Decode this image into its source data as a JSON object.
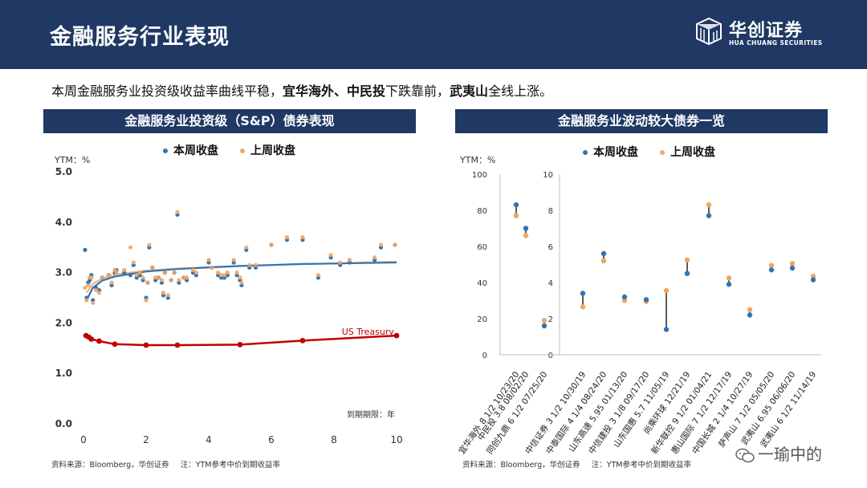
{
  "header": {
    "title": "金融服务行业表现",
    "logo_cn": "华创证券",
    "logo_en": "HUA CHUANG SECURITIES"
  },
  "summary": {
    "part1": "本周金融服务业投资级收益率曲线平稳，",
    "bold1": "宜华海外、中民投",
    "part2": "下跌靠前，",
    "bold2": "武夷山",
    "part3": "全线上涨。"
  },
  "left_panel": {
    "title": "金融服务业投资级（S&P）债券表现",
    "source": "资料来源：Bloomberg，华创证券",
    "note": "注：YTM参考中价到期收益率"
  },
  "right_panel": {
    "title": "金融服务业波动较大债券一览",
    "source": "资料来源：Bloomberg，华创证券",
    "note": "注：YTM参考中价到期收益率"
  },
  "watermark": "一瑜中的",
  "colors": {
    "navy": "#1f3864",
    "this_week": "#2e75b6",
    "last_week": "#f4a460",
    "treasury": "#c00000",
    "fit_this": "#2e75b6",
    "fit_last": "#f4b183"
  },
  "chart_data": [
    {
      "type": "scatter",
      "ylabel": "YTM：%",
      "xlabel": "到期期限：年",
      "xlim": [
        0,
        10
      ],
      "ylim": [
        0,
        5
      ],
      "x_ticks": [
        "0",
        "2",
        "4",
        "6",
        "8",
        "10"
      ],
      "y_ticks": [
        "0.0",
        "1.0",
        "2.0",
        "3.0",
        "4.0",
        "5.0"
      ],
      "grid": false,
      "legend": [
        "本周收盘",
        "上周收盘"
      ],
      "legend_position": "top",
      "series": [
        {
          "name": "本周收盘",
          "points": [
            [
              0.05,
              3.45
            ],
            [
              0.1,
              2.5
            ],
            [
              0.15,
              2.8
            ],
            [
              0.2,
              2.85
            ],
            [
              0.25,
              2.95
            ],
            [
              0.3,
              2.45
            ],
            [
              0.4,
              2.7
            ],
            [
              0.5,
              2.65
            ],
            [
              0.6,
              2.9
            ],
            [
              0.8,
              2.95
            ],
            [
              0.9,
              2.75
            ],
            [
              1.0,
              3.0
            ],
            [
              1.05,
              3.05
            ],
            [
              1.3,
              3.0
            ],
            [
              1.5,
              2.95
            ],
            [
              1.6,
              3.15
            ],
            [
              1.7,
              2.9
            ],
            [
              1.8,
              2.95
            ],
            [
              1.9,
              2.85
            ],
            [
              2.0,
              2.5
            ],
            [
              2.05,
              2.8
            ],
            [
              2.1,
              3.5
            ],
            [
              2.2,
              3.1
            ],
            [
              2.3,
              2.85
            ],
            [
              2.4,
              2.9
            ],
            [
              2.5,
              2.8
            ],
            [
              2.55,
              2.55
            ],
            [
              2.6,
              3.0
            ],
            [
              2.7,
              2.5
            ],
            [
              2.8,
              2.85
            ],
            [
              2.9,
              3.0
            ],
            [
              3.0,
              4.15
            ],
            [
              3.05,
              2.8
            ],
            [
              3.2,
              2.9
            ],
            [
              3.3,
              2.85
            ],
            [
              3.5,
              3.0
            ],
            [
              3.6,
              2.95
            ],
            [
              4.0,
              3.2
            ],
            [
              4.1,
              3.1
            ],
            [
              4.3,
              2.95
            ],
            [
              4.4,
              2.9
            ],
            [
              4.5,
              2.9
            ],
            [
              4.6,
              2.95
            ],
            [
              4.8,
              3.2
            ],
            [
              4.9,
              2.95
            ],
            [
              5.0,
              2.85
            ],
            [
              5.05,
              2.75
            ],
            [
              5.2,
              3.45
            ],
            [
              5.3,
              3.1
            ],
            [
              5.5,
              3.1
            ],
            [
              6.0,
              3.55
            ],
            [
              6.5,
              3.65
            ],
            [
              7.0,
              3.65
            ],
            [
              7.5,
              2.9
            ],
            [
              7.9,
              3.3
            ],
            [
              8.2,
              3.15
            ],
            [
              8.5,
              3.2
            ],
            [
              9.3,
              3.25
            ],
            [
              9.5,
              3.5
            ],
            [
              9.95,
              3.55
            ]
          ]
        },
        {
          "name": "上周收盘",
          "points": [
            [
              0.05,
              2.7
            ],
            [
              0.1,
              2.45
            ],
            [
              0.15,
              2.75
            ],
            [
              0.2,
              2.9
            ],
            [
              0.25,
              2.9
            ],
            [
              0.3,
              2.4
            ],
            [
              0.4,
              2.65
            ],
            [
              0.5,
              2.6
            ],
            [
              0.6,
              2.9
            ],
            [
              0.8,
              2.95
            ],
            [
              0.9,
              2.8
            ],
            [
              1.0,
              3.05
            ],
            [
              1.05,
              3.0
            ],
            [
              1.3,
              3.05
            ],
            [
              1.5,
              3.5
            ],
            [
              1.6,
              3.2
            ],
            [
              1.7,
              2.95
            ],
            [
              1.8,
              3.0
            ],
            [
              1.9,
              2.9
            ],
            [
              2.0,
              2.45
            ],
            [
              2.05,
              2.8
            ],
            [
              2.1,
              3.55
            ],
            [
              2.2,
              3.1
            ],
            [
              2.3,
              2.9
            ],
            [
              2.4,
              2.9
            ],
            [
              2.5,
              2.85
            ],
            [
              2.55,
              2.6
            ],
            [
              2.6,
              3.0
            ],
            [
              2.7,
              2.55
            ],
            [
              2.8,
              2.85
            ],
            [
              2.9,
              3.0
            ],
            [
              3.0,
              4.2
            ],
            [
              3.05,
              2.85
            ],
            [
              3.2,
              2.9
            ],
            [
              3.3,
              2.9
            ],
            [
              3.5,
              3.05
            ],
            [
              3.6,
              3.0
            ],
            [
              4.0,
              3.25
            ],
            [
              4.1,
              3.1
            ],
            [
              4.3,
              3.0
            ],
            [
              4.4,
              2.95
            ],
            [
              4.5,
              2.95
            ],
            [
              4.6,
              3.0
            ],
            [
              4.8,
              3.25
            ],
            [
              4.9,
              3.0
            ],
            [
              5.0,
              2.9
            ],
            [
              5.05,
              2.8
            ],
            [
              5.2,
              3.5
            ],
            [
              5.3,
              3.15
            ],
            [
              5.5,
              3.15
            ],
            [
              6.0,
              3.55
            ],
            [
              6.5,
              3.7
            ],
            [
              7.0,
              3.7
            ],
            [
              7.5,
              2.95
            ],
            [
              7.9,
              3.35
            ],
            [
              8.2,
              3.2
            ],
            [
              8.5,
              3.25
            ],
            [
              9.3,
              3.3
            ],
            [
              9.5,
              3.55
            ],
            [
              9.95,
              3.55
            ]
          ]
        }
      ],
      "trend_lines": [
        {
          "series": "本周收盘",
          "points": [
            [
              0.1,
              2.45
            ],
            [
              0.3,
              2.7
            ],
            [
              0.6,
              2.84
            ],
            [
              1.0,
              2.92
            ],
            [
              2.0,
              3.02
            ],
            [
              3.0,
              3.07
            ],
            [
              4.0,
              3.1
            ],
            [
              5.0,
              3.13
            ],
            [
              6.0,
              3.15
            ],
            [
              7.0,
              3.17
            ],
            [
              8.0,
              3.18
            ],
            [
              9.0,
              3.19
            ],
            [
              10.0,
              3.2
            ]
          ]
        },
        {
          "series": "上周收盘",
          "points": [
            [
              0.1,
              2.6
            ],
            [
              0.3,
              2.78
            ],
            [
              0.6,
              2.88
            ],
            [
              1.0,
              2.96
            ],
            [
              2.0,
              3.04
            ],
            [
              3.0,
              3.08
            ],
            [
              4.0,
              3.11
            ],
            [
              5.0,
              3.13
            ],
            [
              6.0,
              3.15
            ],
            [
              7.0,
              3.17
            ],
            [
              8.0,
              3.18
            ],
            [
              9.0,
              3.2
            ],
            [
              10.0,
              3.21
            ]
          ]
        }
      ],
      "treasury": {
        "name": "US Treasury",
        "points": [
          [
            0.08,
            1.75
          ],
          [
            0.17,
            1.72
          ],
          [
            0.25,
            1.68
          ],
          [
            0.5,
            1.64
          ],
          [
            1.0,
            1.58
          ],
          [
            2.0,
            1.56
          ],
          [
            3.0,
            1.56
          ],
          [
            5.0,
            1.57
          ],
          [
            7.0,
            1.65
          ],
          [
            10.0,
            1.75
          ]
        ]
      }
    },
    {
      "type": "scatter",
      "ylabel": "YTM：%",
      "legend": [
        "本周收盘",
        "上周收盘"
      ],
      "legend_position": "top",
      "grid": false,
      "axis_left": {
        "ylim": [
          0,
          100
        ],
        "ticks": [
          "0",
          "20",
          "40",
          "60",
          "80",
          "100"
        ]
      },
      "axis_right": {
        "ylim": [
          0,
          10
        ],
        "ticks": [
          "0",
          "2",
          "4",
          "6",
          "8",
          "10"
        ]
      },
      "categories": [
        "宜华海外 8 1/2 10/23/20",
        "中民投 3.8 08/02/20",
        "同创九鼎 6 1/2 07/25/20",
        "中信证券 3 1/2 10/30/19",
        "中泰国际 4 1/4 08/24/20",
        "山东高速 5.95 01/13/20",
        "中信建投 3 1/8 09/17/20",
        "山东国惠 5.7 11/05/19",
        "尚乘环球 12/21/19",
        "新华联控 9 1/2 01/04/21",
        "惠山国际 7 1/2 12/17/19",
        "中国长城 2 1/4 10/27/19",
        "萨声山 7 1/2 05/05/20",
        "武夷山 6.95 06/06/20",
        "武夷山 6 1/2 11/14/19"
      ],
      "series": [
        {
          "name": "本周收盘",
          "values": [
            83,
            70,
            16,
            3.4,
            5.6,
            3.2,
            3.05,
            1.4,
            4.5,
            7.7,
            3.9,
            2.2,
            4.7,
            4.8,
            4.15
          ]
        },
        {
          "name": "上周收盘",
          "values": [
            77,
            66,
            19,
            2.65,
            5.2,
            3.0,
            2.95,
            3.55,
            5.25,
            8.3,
            4.25,
            2.5,
            4.95,
            5.05,
            4.35
          ]
        }
      ],
      "axis_assignment": [
        "left",
        "left",
        "left",
        "right",
        "right",
        "right",
        "right",
        "right",
        "right",
        "right",
        "right",
        "right",
        "right",
        "right",
        "right"
      ]
    }
  ]
}
